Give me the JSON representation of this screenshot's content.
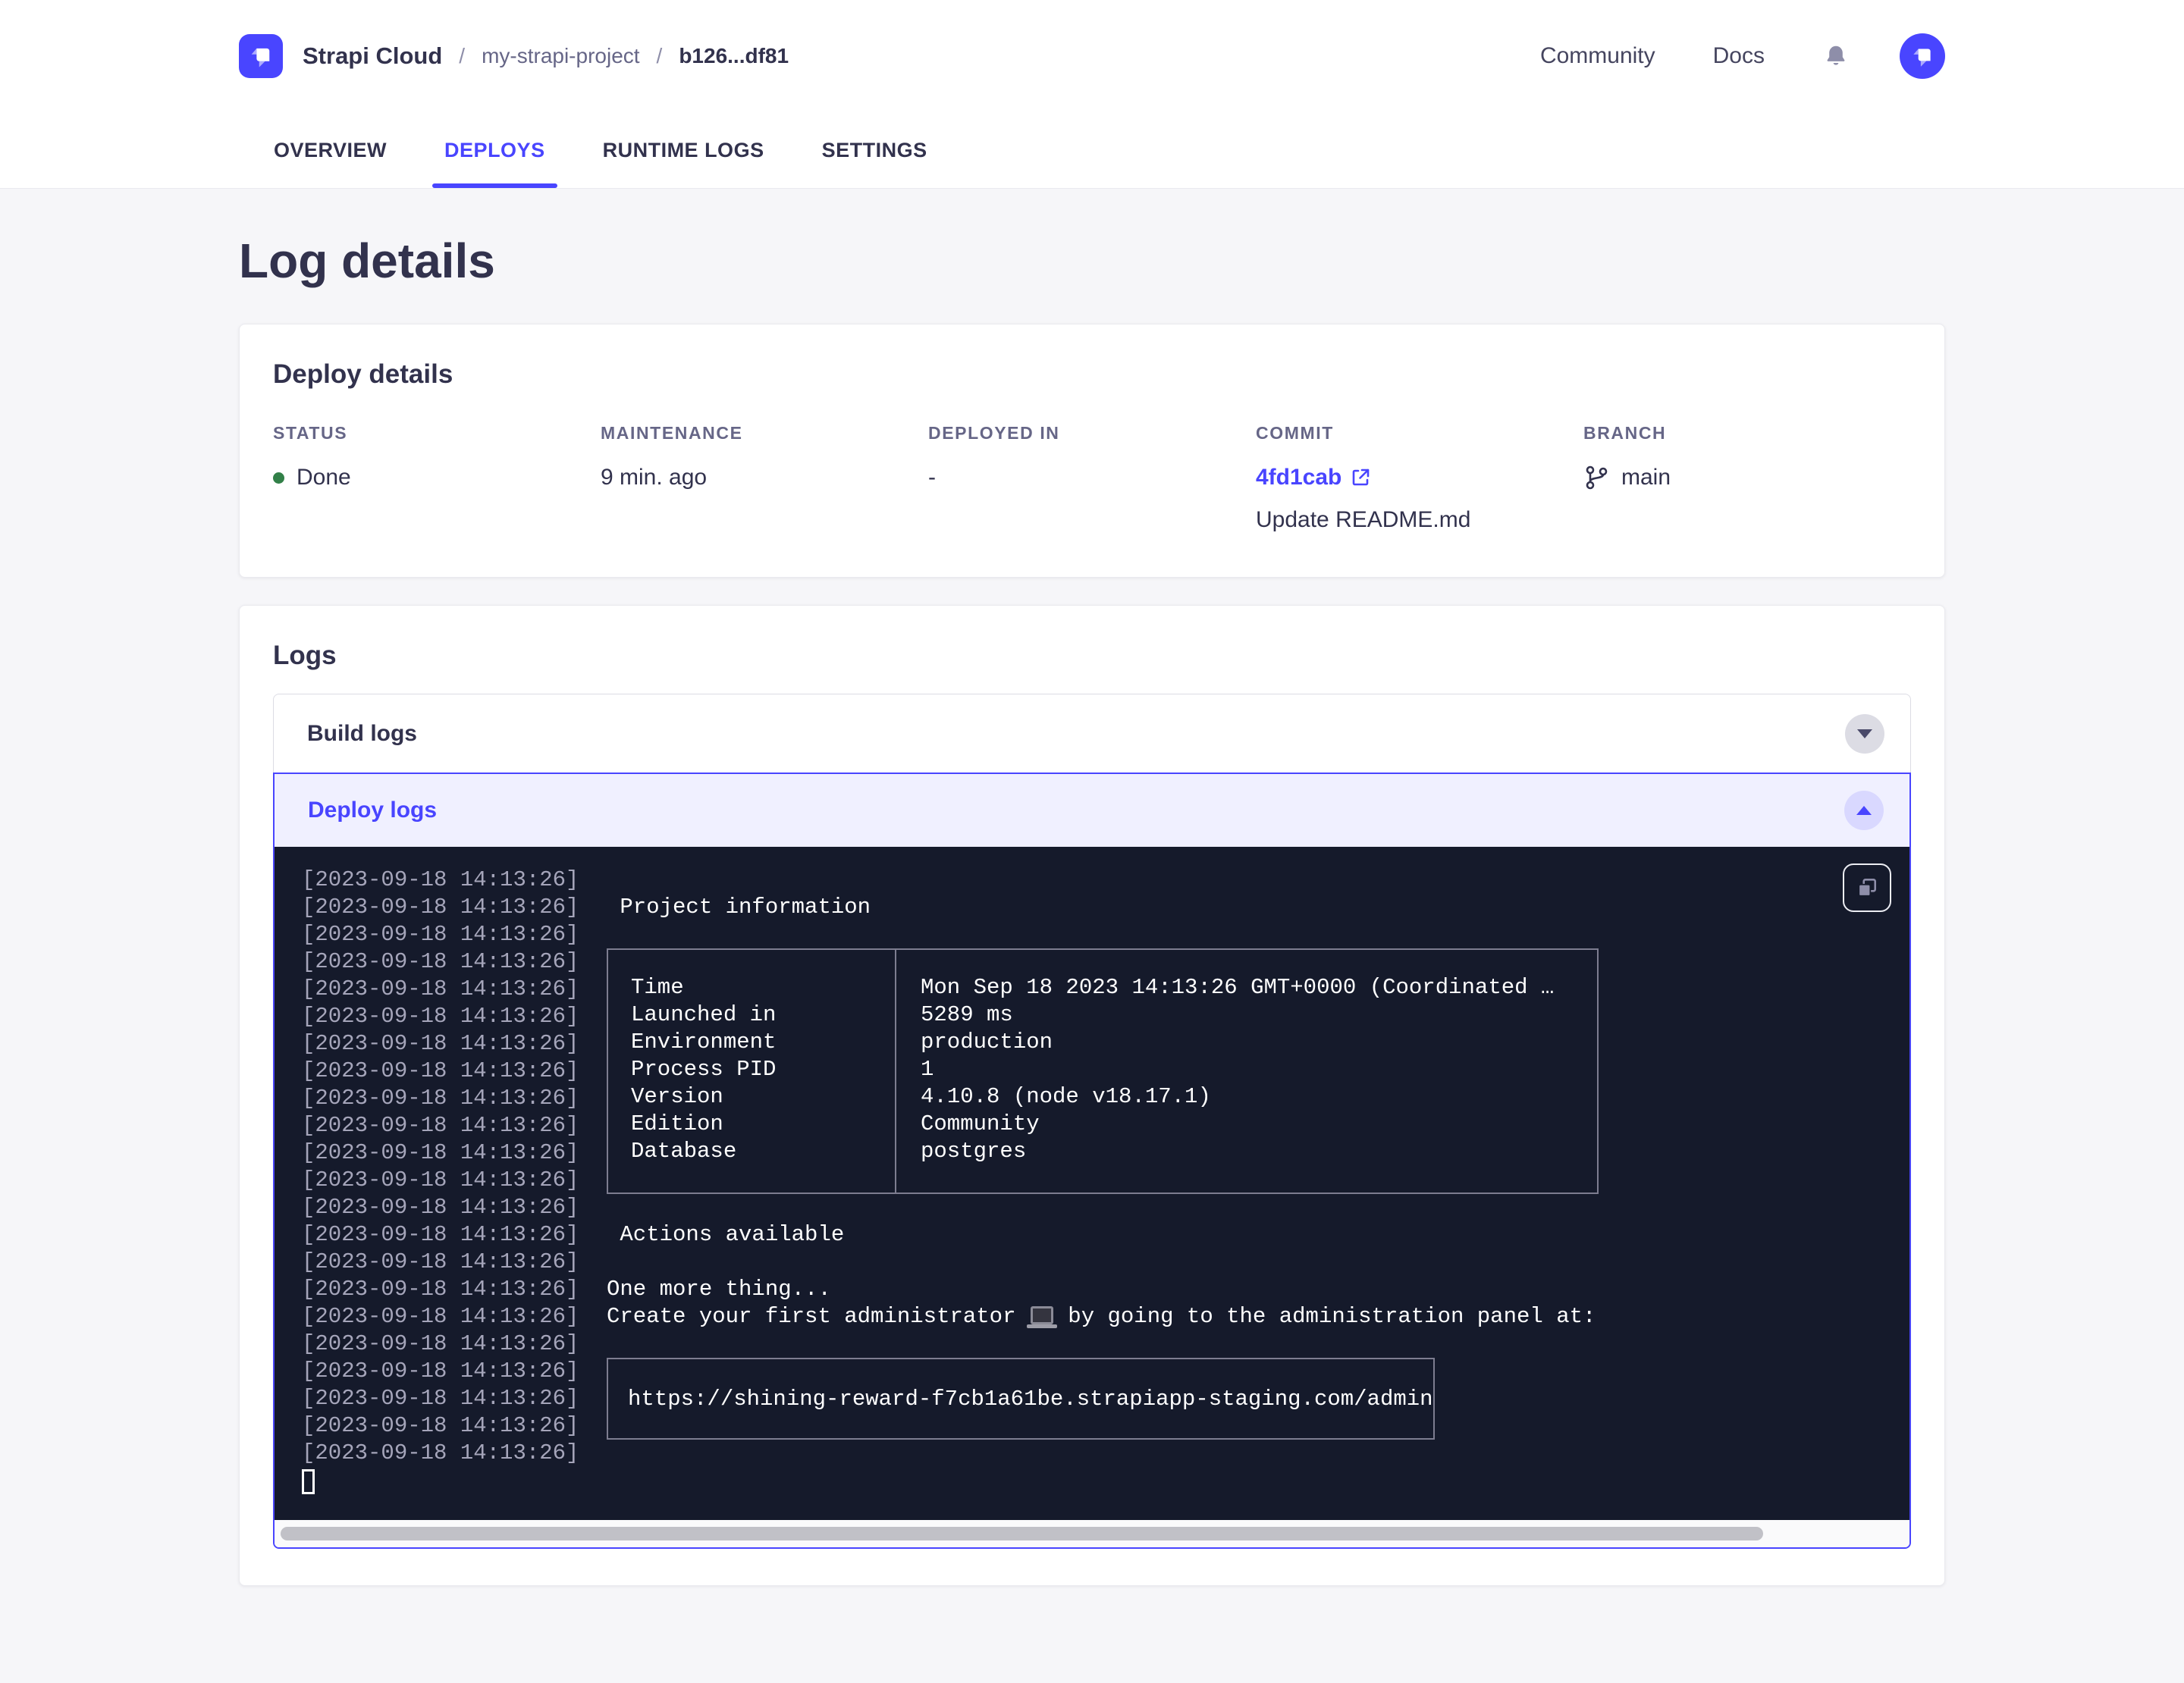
{
  "header": {
    "brand": "Strapi Cloud",
    "separator": "/",
    "breadcrumb": {
      "project": "my-strapi-project",
      "deploy": "b126...df81"
    },
    "nav": {
      "community": "Community",
      "docs": "Docs"
    },
    "icons": {
      "logo": "strapi-logo",
      "bell": "notification-bell-icon",
      "avatar": "strapi-avatar"
    },
    "tabs": [
      {
        "label": "OVERVIEW",
        "active": false
      },
      {
        "label": "DEPLOYS",
        "active": true
      },
      {
        "label": "RUNTIME LOGS",
        "active": false
      },
      {
        "label": "SETTINGS",
        "active": false
      }
    ]
  },
  "page": {
    "title": "Log details"
  },
  "deploy_details": {
    "heading": "Deploy details",
    "status": {
      "label": "STATUS",
      "value": "Done",
      "dot_color": "#328048"
    },
    "maintenance": {
      "label": "MAINTENANCE",
      "value": "9 min. ago"
    },
    "deployed_in": {
      "label": "DEPLOYED IN",
      "value": "-"
    },
    "commit": {
      "label": "COMMIT",
      "hash": "4fd1cab",
      "message": "Update README.md",
      "link_icon": "external-link-icon"
    },
    "branch": {
      "label": "BRANCH",
      "value": "main",
      "icon": "git-branch-icon"
    }
  },
  "logs": {
    "heading": "Logs",
    "build_label": "Build logs",
    "deploy_label": "Deploy logs"
  },
  "terminal": {
    "timestamp": "[2023-09-18 14:13:26]",
    "colors": {
      "background": "#151a2b",
      "timestamp": "#a5a5ba",
      "text": "#ffffff",
      "border": "#7d7d90",
      "accent_border": "#4945ff"
    },
    "segments": [
      {
        "type": "blank"
      },
      {
        "type": "text",
        "text": " Project information"
      },
      {
        "type": "blank"
      },
      {
        "type": "table",
        "rows": [
          [
            "Time",
            "Mon Sep 18 2023 14:13:26 GMT+0000 (Coordinated …"
          ],
          [
            "Launched in",
            "5289 ms"
          ],
          [
            "Environment",
            "production"
          ],
          [
            "Process PID",
            "1"
          ],
          [
            "Version",
            "4.10.8 (node v18.17.1)"
          ],
          [
            "Edition",
            "Community"
          ],
          [
            "Database",
            "postgres"
          ]
        ]
      },
      {
        "type": "blank"
      },
      {
        "type": "text",
        "text": " Actions available"
      },
      {
        "type": "blank"
      },
      {
        "type": "text",
        "text": "One more thing..."
      },
      {
        "type": "admin-line",
        "before": "Create your first administrator ",
        "emoji": "💻",
        "after": " by going to the administration panel at:"
      },
      {
        "type": "blank"
      },
      {
        "type": "box",
        "text": "https://shining-reward-f7cb1a61be.strapiapp-staging.com/admin"
      },
      {
        "type": "blank"
      },
      {
        "type": "cursor"
      }
    ],
    "copy_icon": "copy-icon"
  }
}
